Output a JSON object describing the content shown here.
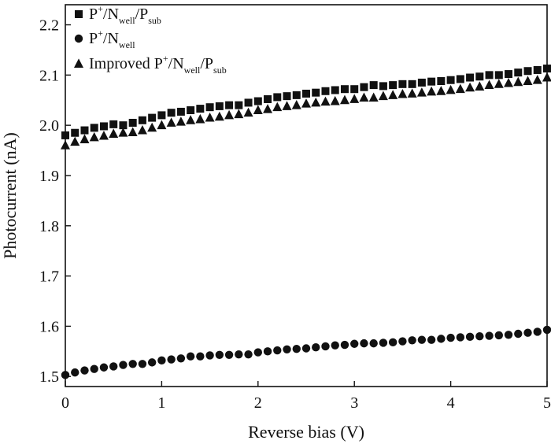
{
  "chart_data": {
    "type": "scatter",
    "title": "",
    "xlabel": "Reverse bias (V)",
    "ylabel": "Photocurrent (nA)",
    "xlim": [
      0,
      5
    ],
    "ylim": [
      1.48,
      2.24
    ],
    "xticks": [
      "0",
      "1",
      "2",
      "3",
      "4",
      "5"
    ],
    "yticks": [
      "1.5",
      "1.6",
      "1.7",
      "1.8",
      "1.9",
      "2.0",
      "2.1",
      "2.2"
    ],
    "grid": false,
    "legend_position": "top-left",
    "series": [
      {
        "name": "P+/Nwell/Psub",
        "label_parts": [
          {
            "t": "P",
            "k": "n"
          },
          {
            "t": "+",
            "k": "sup"
          },
          {
            "t": "/N",
            "k": "n"
          },
          {
            "t": "well",
            "k": "sub"
          },
          {
            "t": "/P",
            "k": "n"
          },
          {
            "t": "sub",
            "k": "sub"
          }
        ],
        "marker": "square",
        "color": "#111111",
        "x": [
          0.0,
          0.1,
          0.2,
          0.3,
          0.4,
          0.5,
          0.6,
          0.7,
          0.8,
          0.9,
          1.0,
          1.1,
          1.2,
          1.3,
          1.4,
          1.5,
          1.6,
          1.7,
          1.8,
          1.9,
          2.0,
          2.1,
          2.2,
          2.3,
          2.4,
          2.5,
          2.6,
          2.7,
          2.8,
          2.9,
          3.0,
          3.1,
          3.2,
          3.3,
          3.4,
          3.5,
          3.6,
          3.7,
          3.8,
          3.9,
          4.0,
          4.1,
          4.2,
          4.3,
          4.4,
          4.5,
          4.6,
          4.7,
          4.8,
          4.9,
          5.0
        ],
        "y": [
          1.98,
          1.985,
          1.99,
          1.995,
          1.998,
          2.002,
          2.0,
          2.005,
          2.01,
          2.015,
          2.02,
          2.025,
          2.027,
          2.03,
          2.033,
          2.036,
          2.038,
          2.04,
          2.04,
          2.045,
          2.048,
          2.052,
          2.056,
          2.058,
          2.06,
          2.063,
          2.065,
          2.068,
          2.07,
          2.072,
          2.072,
          2.076,
          2.08,
          2.078,
          2.08,
          2.082,
          2.082,
          2.085,
          2.087,
          2.088,
          2.09,
          2.092,
          2.095,
          2.097,
          2.1,
          2.1,
          2.102,
          2.105,
          2.108,
          2.11,
          2.113
        ]
      },
      {
        "name": "P+/Nwell",
        "label_parts": [
          {
            "t": "P",
            "k": "n"
          },
          {
            "t": "+",
            "k": "sup"
          },
          {
            "t": "/N",
            "k": "n"
          },
          {
            "t": "well",
            "k": "sub"
          }
        ],
        "marker": "circle",
        "color": "#111111",
        "x": [
          0.0,
          0.1,
          0.2,
          0.3,
          0.4,
          0.5,
          0.6,
          0.7,
          0.8,
          0.9,
          1.0,
          1.1,
          1.2,
          1.3,
          1.4,
          1.5,
          1.6,
          1.7,
          1.8,
          1.9,
          2.0,
          2.1,
          2.2,
          2.3,
          2.4,
          2.5,
          2.6,
          2.7,
          2.8,
          2.9,
          3.0,
          3.1,
          3.2,
          3.3,
          3.4,
          3.5,
          3.6,
          3.7,
          3.8,
          3.9,
          4.0,
          4.1,
          4.2,
          4.3,
          4.4,
          4.5,
          4.6,
          4.7,
          4.8,
          4.9,
          5.0
        ],
        "y": [
          1.503,
          1.508,
          1.512,
          1.515,
          1.518,
          1.52,
          1.523,
          1.525,
          1.525,
          1.528,
          1.532,
          1.534,
          1.536,
          1.54,
          1.54,
          1.542,
          1.543,
          1.543,
          1.544,
          1.544,
          1.548,
          1.55,
          1.552,
          1.554,
          1.555,
          1.556,
          1.558,
          1.56,
          1.562,
          1.563,
          1.565,
          1.566,
          1.566,
          1.567,
          1.568,
          1.57,
          1.572,
          1.573,
          1.573,
          1.575,
          1.577,
          1.578,
          1.579,
          1.58,
          1.581,
          1.582,
          1.583,
          1.585,
          1.587,
          1.589,
          1.593
        ]
      },
      {
        "name": "Improved P+/Nwell/Psub",
        "label_parts": [
          {
            "t": "Improved P",
            "k": "n"
          },
          {
            "t": "+",
            "k": "sup"
          },
          {
            "t": "/N",
            "k": "n"
          },
          {
            "t": "well",
            "k": "sub"
          },
          {
            "t": "/P",
            "k": "n"
          },
          {
            "t": "sub",
            "k": "sub"
          }
        ],
        "marker": "triangle",
        "color": "#111111",
        "x": [
          0.0,
          0.1,
          0.2,
          0.3,
          0.4,
          0.5,
          0.6,
          0.7,
          0.8,
          0.9,
          1.0,
          1.1,
          1.2,
          1.3,
          1.4,
          1.5,
          1.6,
          1.7,
          1.8,
          1.9,
          2.0,
          2.1,
          2.2,
          2.3,
          2.4,
          2.5,
          2.6,
          2.7,
          2.8,
          2.9,
          3.0,
          3.1,
          3.2,
          3.3,
          3.4,
          3.5,
          3.6,
          3.7,
          3.8,
          3.9,
          4.0,
          4.1,
          4.2,
          4.3,
          4.4,
          4.5,
          4.6,
          4.7,
          4.8,
          4.9,
          5.0
        ],
        "y": [
          1.96,
          1.967,
          1.972,
          1.976,
          1.979,
          1.983,
          1.985,
          1.986,
          1.99,
          1.995,
          2.0,
          2.005,
          2.007,
          2.01,
          2.012,
          2.015,
          2.017,
          2.02,
          2.022,
          2.025,
          2.03,
          2.032,
          2.036,
          2.038,
          2.04,
          2.043,
          2.045,
          2.047,
          2.048,
          2.05,
          2.052,
          2.055,
          2.055,
          2.058,
          2.06,
          2.062,
          2.063,
          2.065,
          2.067,
          2.068,
          2.07,
          2.072,
          2.075,
          2.077,
          2.08,
          2.082,
          2.084,
          2.086,
          2.088,
          2.09,
          2.095
        ]
      }
    ]
  }
}
